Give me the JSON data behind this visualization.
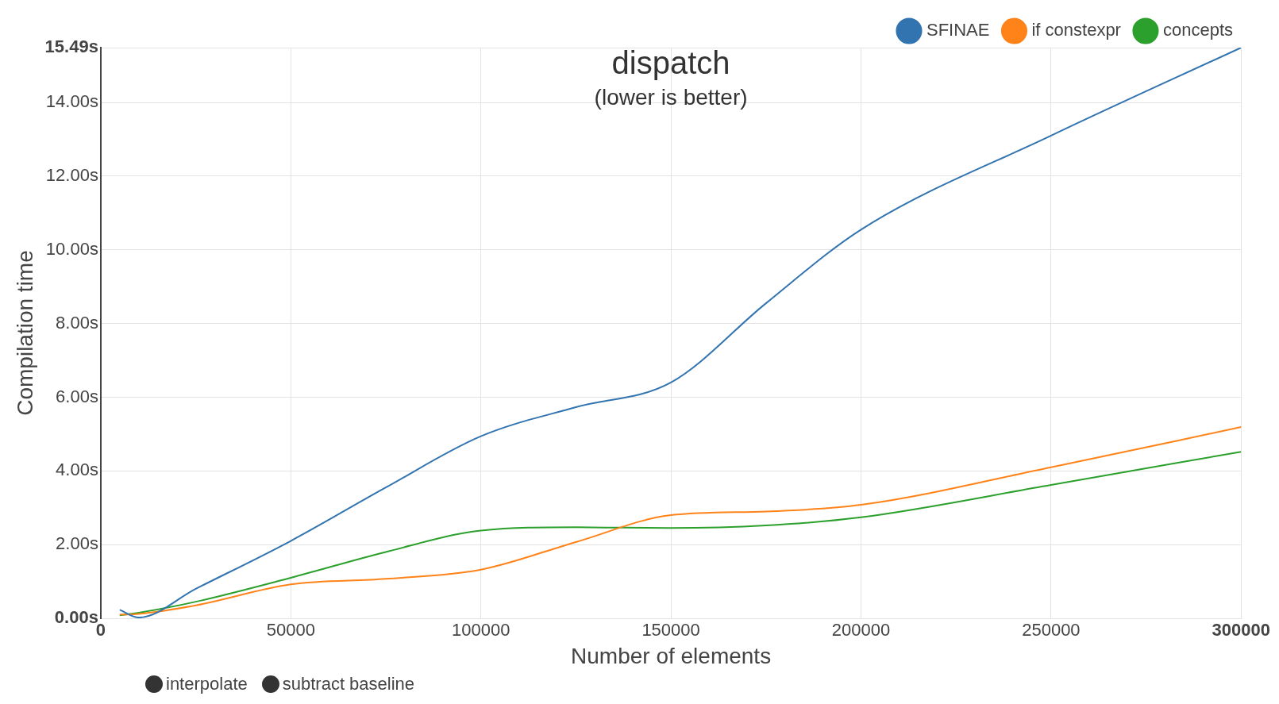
{
  "chart_data": {
    "type": "line",
    "title": "dispatch",
    "subtitle": "(lower is better)",
    "xlabel": "Number of elements",
    "ylabel": "Compilation time",
    "x": [
      5000,
      10000,
      25000,
      50000,
      75000,
      100000,
      125000,
      150000,
      175000,
      200000,
      250000,
      300000
    ],
    "series": [
      {
        "name": "SFINAE",
        "color": "#3274b0",
        "values": [
          0.23,
          0.02,
          0.8,
          2.1,
          3.55,
          4.94,
          5.73,
          6.4,
          8.55,
          10.55,
          13.1,
          15.49
        ]
      },
      {
        "name": "if constexpr",
        "color": "#ff8319",
        "values": [
          0.1,
          0.12,
          0.35,
          0.92,
          1.07,
          1.32,
          2.07,
          2.8,
          2.9,
          3.08,
          4.1,
          5.19
        ]
      },
      {
        "name": "concepts",
        "color": "#2ca02c",
        "values": [
          0.08,
          0.15,
          0.45,
          1.1,
          1.8,
          2.38,
          2.47,
          2.45,
          2.52,
          2.74,
          3.62,
          4.52
        ]
      }
    ],
    "xlim": [
      0,
      300000
    ],
    "xticks": [
      0,
      50000,
      100000,
      150000,
      200000,
      250000,
      300000
    ],
    "ylim": [
      0,
      15.49
    ],
    "yticks": [
      {
        "value": 0,
        "label": "0.00s"
      },
      {
        "value": 2,
        "label": "2.00s"
      },
      {
        "value": 4,
        "label": "4.00s"
      },
      {
        "value": 6,
        "label": "6.00s"
      },
      {
        "value": 8,
        "label": "8.00s"
      },
      {
        "value": 10,
        "label": "10.00s"
      },
      {
        "value": 12,
        "label": "12.00s"
      },
      {
        "value": 14,
        "label": "14.00s"
      },
      {
        "value": 15.49,
        "label": "15.49s"
      }
    ],
    "annotations": [
      "interpolate",
      "subtract baseline"
    ],
    "grid": true,
    "legend": "top right",
    "marker": "none",
    "line_style": "solid"
  }
}
